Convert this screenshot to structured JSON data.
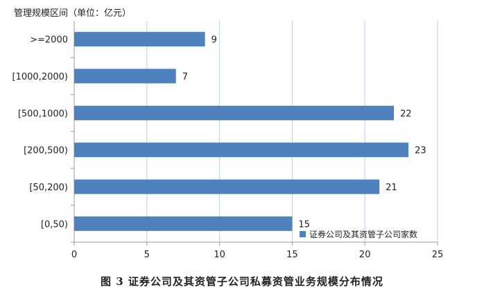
{
  "chart_data": {
    "type": "bar",
    "orientation": "horizontal",
    "title": "图 3   证券公司及其资管子公司私募资管业务规模分布情况",
    "ylabel": "管理规模区间（单位：亿元）",
    "xlabel": "",
    "categories": [
      ">=2000",
      "[1000,2000)",
      "[500,1000)",
      "[200,500)",
      "[50,200)",
      "[0,50)"
    ],
    "series": [
      {
        "name": "证券公司及其资管子公司家数",
        "color": "#4f81bd",
        "values": [
          9,
          7,
          22,
          23,
          21,
          15
        ]
      }
    ],
    "xlim": [
      0,
      25
    ],
    "xticks": [
      0,
      5,
      10,
      15,
      20,
      25
    ],
    "grid": "vertical",
    "legend": "bottom-right"
  }
}
